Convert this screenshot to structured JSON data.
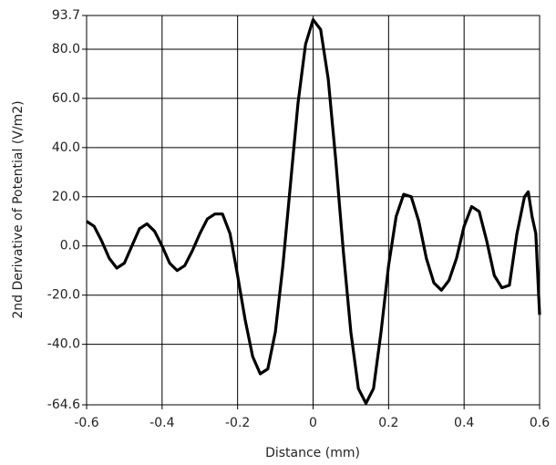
{
  "chart_data": {
    "type": "line",
    "xlabel": "Distance (mm)",
    "ylabel": "2nd Derivative of Potential (V/m2)",
    "x": [
      -0.6,
      -0.58,
      -0.56,
      -0.54,
      -0.52,
      -0.5,
      -0.48,
      -0.46,
      -0.44,
      -0.42,
      -0.4,
      -0.38,
      -0.36,
      -0.34,
      -0.32,
      -0.3,
      -0.28,
      -0.26,
      -0.24,
      -0.22,
      -0.2,
      -0.18,
      -0.16,
      -0.14,
      -0.12,
      -0.1,
      -0.08,
      -0.06,
      -0.04,
      -0.02,
      0,
      0.02,
      0.04,
      0.06,
      0.08,
      0.1,
      0.12,
      0.14,
      0.16,
      0.18,
      0.2,
      0.22,
      0.24,
      0.26,
      0.28,
      0.3,
      0.32,
      0.34,
      0.36,
      0.38,
      0.4,
      0.42,
      0.44,
      0.46,
      0.48,
      0.5,
      0.52,
      0.54,
      0.56,
      0.57,
      0.58,
      0.59,
      0.6
    ],
    "series": [
      {
        "color": "#000000",
        "values": [
          10,
          8,
          2,
          -5,
          -9,
          -7,
          0,
          7,
          9,
          6,
          0,
          -7,
          -10,
          -8,
          -2,
          5,
          11,
          13,
          13,
          5,
          -12,
          -30,
          -45,
          -52,
          -50,
          -35,
          -8,
          25,
          58,
          82,
          92,
          88,
          68,
          35,
          -2,
          -35,
          -58,
          -64,
          -58,
          -35,
          -8,
          12,
          21,
          20,
          10,
          -5,
          -15,
          -18,
          -14,
          -5,
          8,
          16,
          14,
          2,
          -12,
          -17,
          -16,
          5,
          20,
          22,
          12,
          5,
          -28
        ]
      }
    ],
    "xlim": [
      -0.6,
      0.6
    ],
    "xticks": [
      -0.6,
      -0.4,
      -0.2,
      0,
      0.2,
      0.4,
      0.6
    ],
    "ylim": [
      -64.6,
      93.7
    ],
    "yticks": [
      93.7,
      {
        "value": 80,
        "label": "80.0"
      },
      {
        "value": 60,
        "label": "60.0"
      },
      {
        "value": 40,
        "label": "40.0"
      },
      {
        "value": 20,
        "label": "20.0"
      },
      {
        "value": 0,
        "label": "0.0"
      },
      {
        "value": -20,
        "label": "-20.0"
      },
      {
        "value": -40,
        "label": "-40.0"
      },
      -64.6
    ],
    "grid": true
  }
}
